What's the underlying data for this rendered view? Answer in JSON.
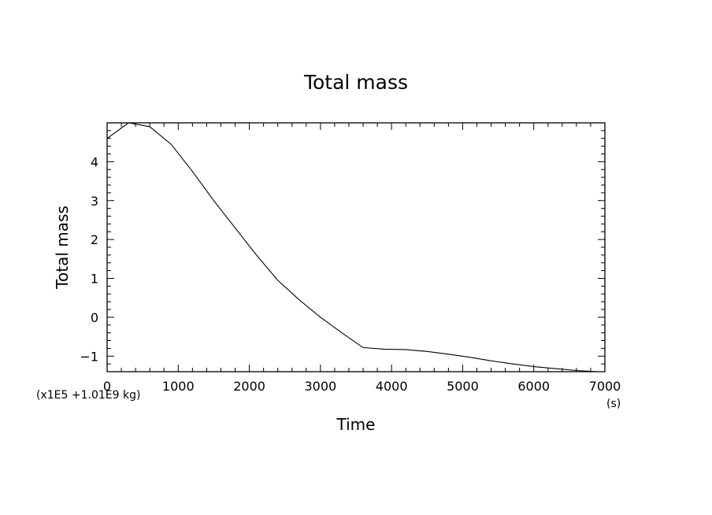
{
  "chart_data": {
    "type": "line",
    "title": "Total mass",
    "xlabel": "Time",
    "ylabel": "Total mass",
    "x_unit": "(s)",
    "y_scale_note": "(x1E5 +1.01E9 kg)",
    "xlim": [
      0,
      7000
    ],
    "ylim": [
      -1.4,
      5
    ],
    "x_ticks": [
      0,
      1000,
      2000,
      3000,
      4000,
      5000,
      6000,
      7000
    ],
    "x_tick_labels": [
      "0",
      "1000",
      "2000",
      "3000",
      "4000",
      "5000",
      "6000",
      "7000"
    ],
    "y_ticks": [
      -1,
      0,
      1,
      2,
      3,
      4
    ],
    "y_tick_labels": [
      "-1",
      "0",
      "1",
      "2",
      "3",
      "4"
    ],
    "grid": false,
    "legend": "none",
    "series": [
      {
        "x": [
          0,
          300,
          600,
          900,
          1200,
          1500,
          1800,
          2100,
          2400,
          2700,
          3000,
          3300,
          3600,
          3900,
          4200,
          4500,
          4800,
          5100,
          5400,
          5700,
          6000,
          6300,
          6600,
          6900,
          7000
        ],
        "y": [
          4.6,
          5.0,
          4.9,
          4.45,
          3.75,
          3.0,
          2.3,
          1.6,
          0.95,
          0.45,
          0.0,
          -0.4,
          -0.78,
          -0.82,
          -0.83,
          -0.88,
          -0.95,
          -1.03,
          -1.12,
          -1.2,
          -1.27,
          -1.32,
          -1.37,
          -1.4,
          -1.4
        ],
        "color": "#000000"
      }
    ]
  }
}
